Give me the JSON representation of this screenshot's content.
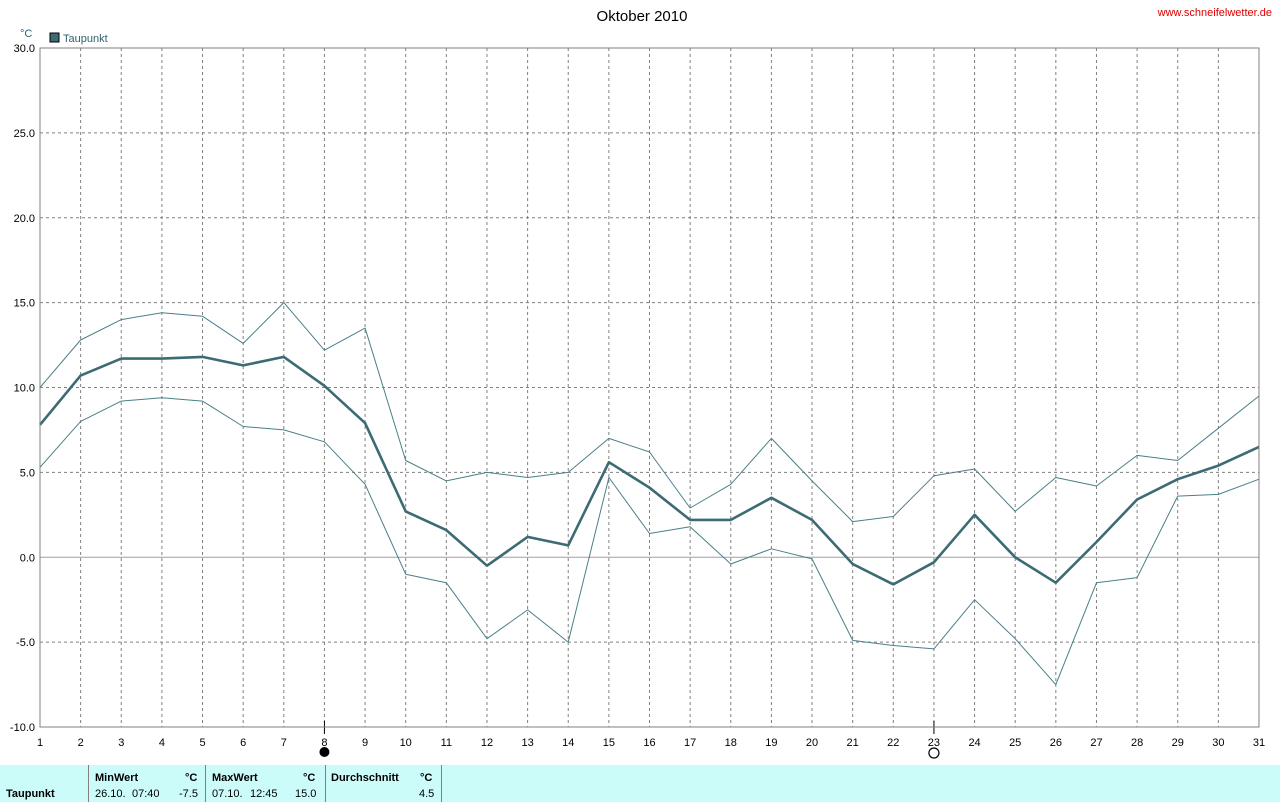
{
  "title": "Oktober 2010",
  "site": "www.schneifelwetter.de",
  "unit": "°C",
  "legend": {
    "label": "Taupunkt",
    "color": "#3c6b73"
  },
  "chart_data": {
    "type": "line",
    "title": "Oktober 2010",
    "ylabel": "°C",
    "xlabel": "",
    "ylim": [
      -10,
      30
    ],
    "xlim": [
      1,
      31
    ],
    "yticks": [
      "30.0",
      "25.0",
      "20.0",
      "15.0",
      "10.0",
      "5.0",
      "0.0",
      "-5.0",
      "-10.0"
    ],
    "x": [
      1,
      2,
      3,
      4,
      5,
      6,
      7,
      8,
      9,
      10,
      11,
      12,
      13,
      14,
      15,
      16,
      17,
      18,
      19,
      20,
      21,
      22,
      23,
      24,
      25,
      26,
      27,
      28,
      29,
      30,
      31
    ],
    "series": [
      {
        "name": "Taupunkt",
        "role": "mean",
        "color": "#3c6b73",
        "values": [
          7.8,
          10.7,
          11.7,
          11.7,
          11.8,
          11.3,
          11.8,
          10.1,
          7.9,
          2.7,
          1.6,
          -0.5,
          1.2,
          0.7,
          5.6,
          4.1,
          2.2,
          2.2,
          3.5,
          2.2,
          -0.4,
          -1.6,
          -0.3,
          2.5,
          0.0,
          -1.5,
          0.9,
          3.4,
          4.6,
          5.4,
          6.5
        ]
      },
      {
        "role": "max",
        "color": "#4a7f88",
        "values": [
          10.0,
          12.8,
          14.0,
          14.4,
          14.2,
          12.6,
          15.0,
          12.2,
          13.5,
          5.7,
          4.5,
          5.0,
          4.7,
          5.0,
          7.0,
          6.2,
          2.9,
          4.3,
          7.0,
          4.5,
          2.1,
          2.4,
          4.8,
          5.2,
          2.7,
          4.7,
          4.2,
          6.0,
          5.7,
          7.6,
          9.5
        ]
      },
      {
        "role": "min",
        "color": "#4a7f88",
        "values": [
          5.3,
          8.0,
          9.2,
          9.4,
          9.2,
          7.7,
          7.5,
          6.8,
          4.3,
          -1.0,
          -1.5,
          -4.8,
          -3.1,
          -5.0,
          4.7,
          1.4,
          1.8,
          -0.4,
          0.5,
          -0.1,
          -4.9,
          -5.2,
          -5.4,
          -2.5,
          -4.8,
          -7.5,
          -1.5,
          -1.2,
          3.6,
          3.7,
          4.6
        ]
      }
    ],
    "grid": true,
    "legend_position": "top-left",
    "moon_markers": [
      {
        "day": 8,
        "phase": "full-moon"
      },
      {
        "day": 23,
        "phase": "new-moon"
      }
    ]
  },
  "stats": {
    "row_label": "Taupunkt",
    "min": {
      "header": "MinWert",
      "unit": "°C",
      "date": "26.10.",
      "time": "07:40",
      "value": "-7.5"
    },
    "max": {
      "header": "MaxWert",
      "unit": "°C",
      "date": "07.10.",
      "time": "12:45",
      "value": "15.0"
    },
    "avg": {
      "header": "Durchschnitt",
      "unit": "°C",
      "value": "4.5"
    }
  }
}
